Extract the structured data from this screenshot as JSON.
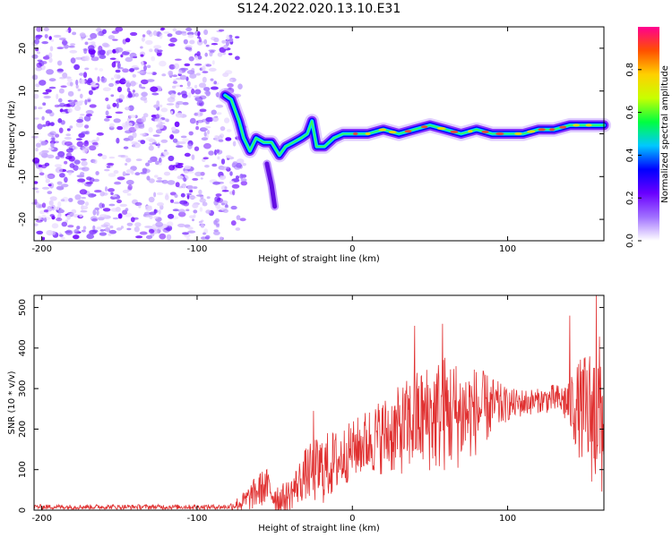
{
  "title": "S124.2022.020.13.10.E31",
  "chart_data": [
    {
      "type": "heatmap",
      "xlabel": "Height of straight line (km)",
      "ylabel": "Frequency (Hz)",
      "xlim": [
        -205,
        162
      ],
      "ylim": [
        -25,
        25
      ],
      "x_ticks": [
        -200,
        -100,
        0,
        100
      ],
      "x_tick_labels": [
        "-200",
        "-100",
        "0",
        "100"
      ],
      "y_ticks": [
        -20,
        -10,
        0,
        10,
        20
      ],
      "y_tick_labels": [
        "-20",
        "-10",
        "0",
        "10",
        "20"
      ],
      "colorbar": {
        "label": "Normalized spectral amplitude",
        "range": [
          0,
          1
        ],
        "ticks": [
          0.0,
          0.2,
          0.4,
          0.6,
          0.8
        ],
        "tick_labels": [
          "0.0",
          "0.2",
          "0.4",
          "0.6",
          "0.8"
        ],
        "colormap": [
          "#ffffff",
          "#a070ff",
          "#6a00ff",
          "#0000ff",
          "#00c8ff",
          "#00ff40",
          "#c8ff00",
          "#ffd000",
          "#ff5000",
          "#ff0090"
        ]
      },
      "noise_region_x": [
        -205,
        -75
      ],
      "ridge": [
        {
          "x": -82,
          "y": 9
        },
        {
          "x": -78,
          "y": 8
        },
        {
          "x": -73,
          "y": 3
        },
        {
          "x": -70,
          "y": -1
        },
        {
          "x": -66,
          "y": -4
        },
        {
          "x": -62,
          "y": -1
        },
        {
          "x": -57,
          "y": -2
        },
        {
          "x": -52,
          "y": -2
        },
        {
          "x": -47,
          "y": -5
        },
        {
          "x": -43,
          "y": -3
        },
        {
          "x": -38,
          "y": -2
        },
        {
          "x": -33,
          "y": -1
        },
        {
          "x": -29,
          "y": 0
        },
        {
          "x": -26,
          "y": 3
        },
        {
          "x": -23,
          "y": -3
        },
        {
          "x": -18,
          "y": -3
        },
        {
          "x": -12,
          "y": -1
        },
        {
          "x": -6,
          "y": 0
        },
        {
          "x": 0,
          "y": 0
        },
        {
          "x": 10,
          "y": 0
        },
        {
          "x": 20,
          "y": 1
        },
        {
          "x": 30,
          "y": 0
        },
        {
          "x": 40,
          "y": 1
        },
        {
          "x": 50,
          "y": 2
        },
        {
          "x": 60,
          "y": 1
        },
        {
          "x": 70,
          "y": 0
        },
        {
          "x": 80,
          "y": 1
        },
        {
          "x": 90,
          "y": 0
        },
        {
          "x": 100,
          "y": 0
        },
        {
          "x": 110,
          "y": 0
        },
        {
          "x": 120,
          "y": 1
        },
        {
          "x": 130,
          "y": 1
        },
        {
          "x": 140,
          "y": 2
        },
        {
          "x": 150,
          "y": 2
        },
        {
          "x": 162,
          "y": 2
        }
      ],
      "branch": [
        {
          "x": -55,
          "y": -7
        },
        {
          "x": -52,
          "y": -12
        },
        {
          "x": -50,
          "y": -17
        }
      ]
    },
    {
      "type": "line",
      "xlabel": "Height of straight line (km)",
      "ylabel": "SNR (10 * v/v)",
      "xlim": [
        -205,
        162
      ],
      "ylim": [
        0,
        530
      ],
      "x_ticks": [
        -200,
        -100,
        0,
        100
      ],
      "x_tick_labels": [
        "-200",
        "-100",
        "0",
        "100"
      ],
      "y_ticks": [
        0,
        100,
        200,
        300,
        400,
        500
      ],
      "y_tick_labels": [
        "0",
        "100",
        "200",
        "300",
        "400",
        "500"
      ],
      "line_color": "#e03030",
      "envelope": [
        {
          "x": -205,
          "y": 8
        },
        {
          "x": -80,
          "y": 8
        },
        {
          "x": -70,
          "y": 20
        },
        {
          "x": -60,
          "y": 50
        },
        {
          "x": -55,
          "y": 60
        },
        {
          "x": -50,
          "y": 35
        },
        {
          "x": -45,
          "y": 25
        },
        {
          "x": -40,
          "y": 40
        },
        {
          "x": -30,
          "y": 90
        },
        {
          "x": -20,
          "y": 100
        },
        {
          "x": -10,
          "y": 120
        },
        {
          "x": 0,
          "y": 150
        },
        {
          "x": 10,
          "y": 170
        },
        {
          "x": 20,
          "y": 185
        },
        {
          "x": 30,
          "y": 195
        },
        {
          "x": 40,
          "y": 220
        },
        {
          "x": 50,
          "y": 230
        },
        {
          "x": 60,
          "y": 240
        },
        {
          "x": 70,
          "y": 235
        },
        {
          "x": 80,
          "y": 245
        },
        {
          "x": 90,
          "y": 255
        },
        {
          "x": 100,
          "y": 260
        },
        {
          "x": 110,
          "y": 265
        },
        {
          "x": 120,
          "y": 270
        },
        {
          "x": 130,
          "y": 275
        },
        {
          "x": 140,
          "y": 265
        },
        {
          "x": 150,
          "y": 240
        },
        {
          "x": 162,
          "y": 230
        }
      ],
      "noise_amplitude": [
        {
          "x": -205,
          "y": 6
        },
        {
          "x": -80,
          "y": 6
        },
        {
          "x": -60,
          "y": 45
        },
        {
          "x": -40,
          "y": 40
        },
        {
          "x": -20,
          "y": 90
        },
        {
          "x": 0,
          "y": 70
        },
        {
          "x": 30,
          "y": 110
        },
        {
          "x": 60,
          "y": 150
        },
        {
          "x": 80,
          "y": 110
        },
        {
          "x": 100,
          "y": 40
        },
        {
          "x": 120,
          "y": 30
        },
        {
          "x": 135,
          "y": 40
        },
        {
          "x": 150,
          "y": 150
        },
        {
          "x": 162,
          "y": 220
        }
      ],
      "peaks": [
        {
          "x": -25,
          "y": 245
        },
        {
          "x": 40,
          "y": 455
        },
        {
          "x": 58,
          "y": 460
        },
        {
          "x": 140,
          "y": 480
        },
        {
          "x": 157,
          "y": 530
        }
      ]
    }
  ]
}
